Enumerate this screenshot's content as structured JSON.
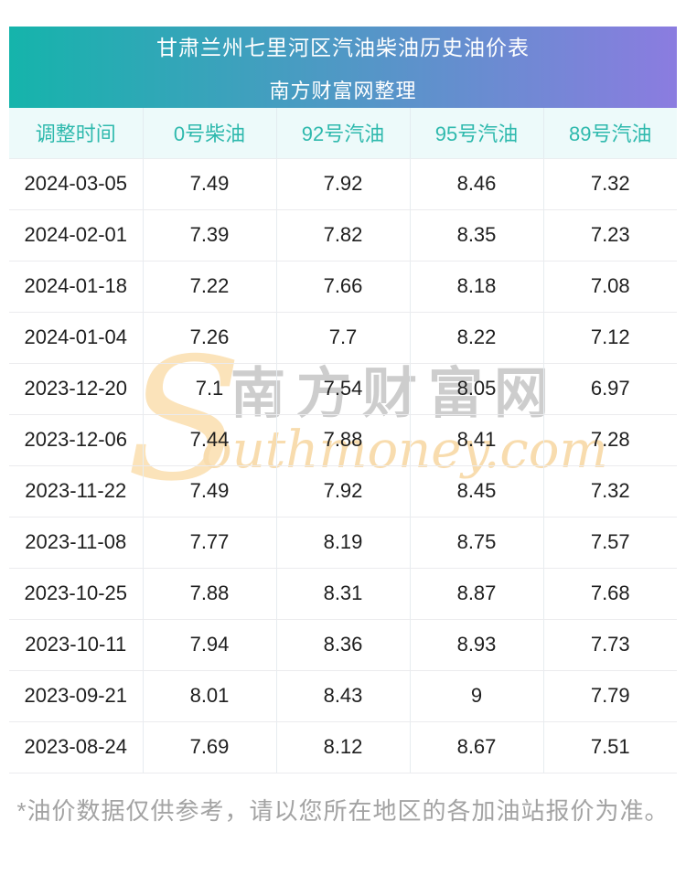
{
  "header": {
    "title": "甘肃兰州七里河区汽油柴油历史油价表",
    "subtitle": "南方财富网整理"
  },
  "table": {
    "columns": [
      "调整时间",
      "0号柴油",
      "92号汽油",
      "95号汽油",
      "89号汽油"
    ],
    "rows": [
      [
        "2024-03-05",
        "7.49",
        "7.92",
        "8.46",
        "7.32"
      ],
      [
        "2024-02-01",
        "7.39",
        "7.82",
        "8.35",
        "7.23"
      ],
      [
        "2024-01-18",
        "7.22",
        "7.66",
        "8.18",
        "7.08"
      ],
      [
        "2024-01-04",
        "7.26",
        "7.7",
        "8.22",
        "7.12"
      ],
      [
        "2023-12-20",
        "7.1",
        "7.54",
        "8.05",
        "6.97"
      ],
      [
        "2023-12-06",
        "7.44",
        "7.88",
        "8.41",
        "7.28"
      ],
      [
        "2023-11-22",
        "7.49",
        "7.92",
        "8.45",
        "7.32"
      ],
      [
        "2023-11-08",
        "7.77",
        "8.19",
        "8.75",
        "7.57"
      ],
      [
        "2023-10-25",
        "7.88",
        "8.31",
        "8.87",
        "7.68"
      ],
      [
        "2023-10-11",
        "7.94",
        "8.36",
        "8.93",
        "7.73"
      ],
      [
        "2023-09-21",
        "8.01",
        "8.43",
        "9",
        "7.79"
      ],
      [
        "2023-08-24",
        "7.69",
        "8.12",
        "8.67",
        "7.51"
      ]
    ]
  },
  "watermark": {
    "initial": "S",
    "cn_text": "南方财富网",
    "en_text": "outhmoney.com"
  },
  "footer": {
    "note": "*油价数据仅供参考，请以您所在地区的各加油站报价为准。"
  },
  "colors": {
    "banner_gradient_start": "#15b4ab",
    "banner_gradient_end": "#8b7ce0",
    "header_row_bg": "#edfafa",
    "header_row_text": "#2eb9ad",
    "cell_text": "#1f1f1f",
    "footer_text": "#a3a3a3",
    "watermark_orange": "#f8dcae",
    "watermark_gray": "#cdcdcd"
  }
}
